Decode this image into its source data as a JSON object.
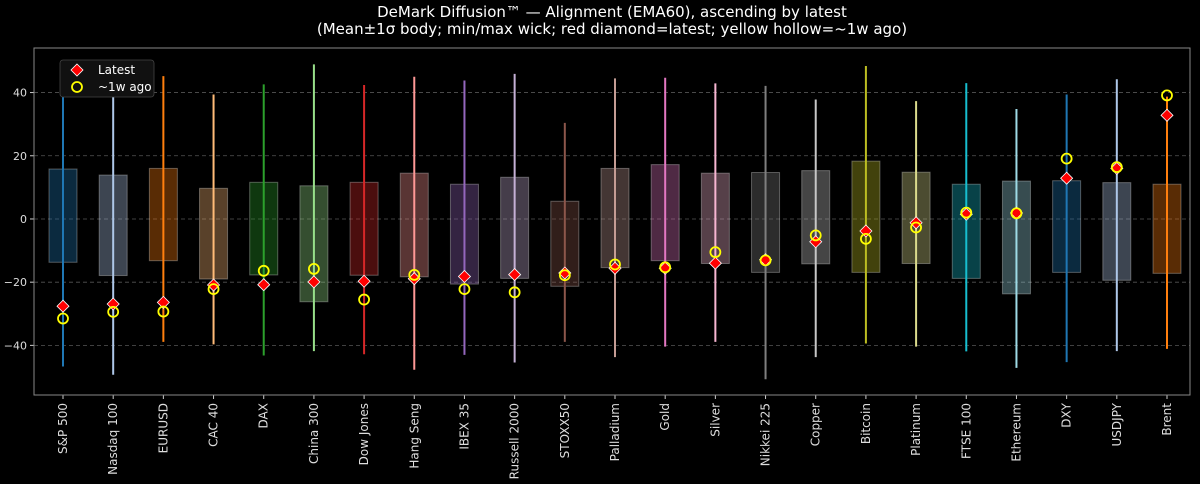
{
  "chart_data": {
    "type": "box",
    "title": "DeMark Diffusion™ — Alignment (EMA60), ascending by latest",
    "subtitle": "(Mean±1σ body; min/max wick; red diamond=latest; yellow hollow=~1w ago)",
    "xlabel": "",
    "ylabel": "",
    "ylim": [
      -55.7,
      54.1
    ],
    "yticks": [
      -40,
      -20,
      0,
      20,
      40
    ],
    "grid": "horizontal dashed",
    "legend": {
      "placement": "top-left",
      "entries": [
        {
          "label": "Latest",
          "marker": "diamond",
          "color": "#ff0000"
        },
        {
          "label": "~1w ago",
          "marker": "hollow-circle",
          "color": "#ffff00"
        }
      ]
    },
    "categories": [
      "S&P 500",
      "Nasdaq 100",
      "EURUSD",
      "CAC 40",
      "DAX",
      "China 300",
      "Dow Jones",
      "Hang Seng",
      "IBEX 35",
      "Russell 2000",
      "STOXX50",
      "Palladium",
      "Gold",
      "Silver",
      "Nikkei 225",
      "Copper",
      "Bitcoin",
      "Platinum",
      "FTSE 100",
      "Ethereum",
      "DXY",
      "USDJPY",
      "Brent"
    ],
    "colors": [
      "#1f77b4",
      "#aec7e8",
      "#ff7f0e",
      "#ffbb78",
      "#2ca02c",
      "#98df8a",
      "#d62728",
      "#ff9896",
      "#9467bd",
      "#c5b0d5",
      "#8c564b",
      "#c49c94",
      "#e377c2",
      "#f7b6d2",
      "#7f7f7f",
      "#c7c7c7",
      "#bcbd22",
      "#dbdb8d",
      "#17becf",
      "#9edae5",
      "#1f77b4",
      "#aec7e8",
      "#ff7f0e"
    ],
    "max": [
      46.1,
      42.0,
      45.2,
      39.4,
      42.6,
      48.9,
      42.4,
      45.0,
      43.8,
      45.9,
      30.4,
      44.5,
      44.7,
      42.9,
      42.1,
      37.8,
      48.4,
      37.3,
      43.0,
      34.8,
      39.4,
      44.2,
      38.7
    ],
    "min": [
      -46.7,
      -49.3,
      -38.9,
      -39.7,
      -43.2,
      -41.8,
      -42.8,
      -47.7,
      -43.0,
      -45.4,
      -38.9,
      -43.7,
      -40.4,
      -38.9,
      -50.7,
      -43.7,
      -39.4,
      -40.4,
      -41.9,
      -47.1,
      -45.3,
      -41.8,
      -41.1
    ],
    "body_top": [
      15.8,
      13.9,
      16.0,
      9.7,
      11.6,
      10.5,
      11.6,
      14.5,
      11.0,
      13.2,
      5.6,
      16.0,
      17.2,
      14.5,
      14.7,
      15.3,
      18.3,
      14.8,
      11.0,
      12.0,
      12.1,
      11.5,
      11.0
    ],
    "body_bottom": [
      -13.7,
      -17.9,
      -13.2,
      -19.0,
      -17.7,
      -26.2,
      -17.8,
      -18.3,
      -20.6,
      -18.8,
      -21.3,
      -15.4,
      -13.2,
      -14.1,
      -16.9,
      -14.2,
      -16.9,
      -14.1,
      -18.8,
      -23.7,
      -16.9,
      -19.4,
      -17.2
    ],
    "latest": [
      -27.6,
      -26.9,
      -26.4,
      -20.9,
      -20.8,
      -19.9,
      -19.7,
      -18.9,
      -18.2,
      -17.6,
      -17.1,
      -15.6,
      -15.6,
      -14.0,
      -12.9,
      -7.2,
      -3.8,
      -1.2,
      1.5,
      1.9,
      12.9,
      16.0,
      32.8
    ],
    "week_ago": [
      -31.5,
      -29.4,
      -29.3,
      -22.2,
      -16.4,
      -15.8,
      -25.5,
      -17.7,
      -22.2,
      -23.2,
      -17.8,
      -14.4,
      -15.3,
      -10.5,
      -13.1,
      -5.2,
      -6.3,
      -2.7,
      2.0,
      1.8,
      19.1,
      16.4,
      39.1
    ]
  }
}
